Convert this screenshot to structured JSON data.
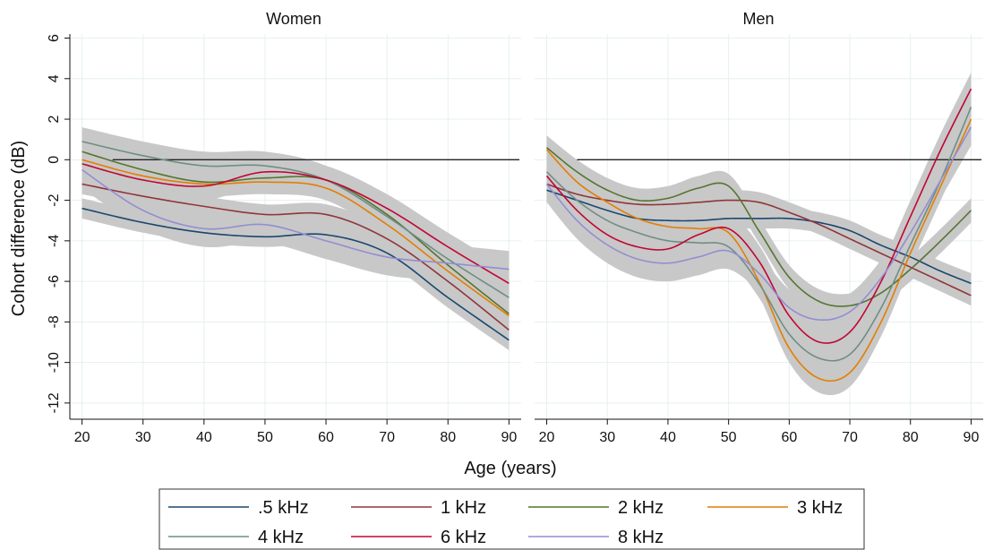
{
  "chart_data": {
    "type": "line",
    "xlabel": "Age (years)",
    "ylabel": "Cohort difference (dB)",
    "xlim": [
      18,
      92
    ],
    "ylim": [
      -12.8,
      6.2
    ],
    "xticks": [
      "20",
      "30",
      "40",
      "50",
      "60",
      "70",
      "80",
      "90"
    ],
    "yticks": [
      "6",
      "4",
      "2",
      "0",
      "-2",
      "-4",
      "-6",
      "-8",
      "-10",
      "-12"
    ],
    "reference_line_y": 0,
    "grid": true,
    "confidence_bands": "grey",
    "legend_position": "bottom",
    "panels": [
      {
        "title": "Women",
        "x": [
          20,
          30,
          40,
          50,
          60,
          70,
          80,
          90
        ],
        "series": [
          {
            "name": ".5 kHz",
            "color": "#1a476f",
            "values": [
              -2.4,
              -3.1,
              -3.6,
              -3.8,
              -3.7,
              -4.6,
              -6.8,
              -8.9
            ],
            "band": 0.5
          },
          {
            "name": "1 kHz",
            "color": "#90353b",
            "values": [
              -1.2,
              -1.8,
              -2.3,
              -2.7,
              -2.7,
              -3.9,
              -6.0,
              -8.4
            ],
            "band": 0.5
          },
          {
            "name": "2 kHz",
            "color": "#55752f",
            "values": [
              0.4,
              -0.5,
              -1.1,
              -0.9,
              -1.0,
              -2.7,
              -5.2,
              -7.6
            ],
            "band": 0.6
          },
          {
            "name": "3 kHz",
            "color": "#e37e00",
            "values": [
              0.0,
              -0.8,
              -1.2,
              -1.1,
              -1.4,
              -3.2,
              -5.5,
              -7.7
            ],
            "band": 0.6
          },
          {
            "name": "4 kHz",
            "color": "#6e8e84",
            "values": [
              0.9,
              0.2,
              -0.3,
              -0.3,
              -1.0,
              -2.8,
              -4.9,
              -6.8
            ],
            "band": 0.7
          },
          {
            "name": "6 kHz",
            "color": "#c10534",
            "values": [
              -0.2,
              -1.0,
              -1.3,
              -0.6,
              -1.0,
              -2.4,
              -4.3,
              -6.1
            ],
            "band": 0.7
          },
          {
            "name": "8 kHz",
            "color": "#938dd2",
            "values": [
              -0.5,
              -2.5,
              -3.4,
              -3.2,
              -4.0,
              -4.8,
              -5.1,
              -5.4
            ],
            "band": 0.9
          }
        ]
      },
      {
        "title": "Men",
        "x": [
          20,
          25,
          30,
          35,
          40,
          45,
          50,
          55,
          60,
          65,
          70,
          75,
          80,
          85,
          90
        ],
        "series": [
          {
            "name": ".5 kHz",
            "color": "#1a476f",
            "values": [
              -1.5,
              -2.0,
              -2.5,
              -2.9,
              -3.0,
              -3.0,
              -2.9,
              -2.9,
              -2.9,
              -3.1,
              -3.5,
              -4.2,
              -4.8,
              -5.5,
              -6.1
            ],
            "band": 0.5
          },
          {
            "name": "1 kHz",
            "color": "#90353b",
            "values": [
              -1.2,
              -1.7,
              -2.0,
              -2.2,
              -2.2,
              -2.1,
              -2.0,
              -2.1,
              -2.6,
              -3.2,
              -3.9,
              -4.6,
              -5.3,
              -6.0,
              -6.7
            ],
            "band": 0.5
          },
          {
            "name": "2 kHz",
            "color": "#55752f",
            "values": [
              0.6,
              -0.6,
              -1.5,
              -2.0,
              -1.9,
              -1.4,
              -1.3,
              -3.5,
              -5.8,
              -7.0,
              -7.2,
              -6.6,
              -5.4,
              -4.0,
              -2.5
            ],
            "band": 0.6
          },
          {
            "name": "3 kHz",
            "color": "#e37e00",
            "values": [
              0.5,
              -1.1,
              -2.1,
              -2.9,
              -3.3,
              -3.4,
              -3.6,
              -6.0,
              -9.3,
              -10.8,
              -10.5,
              -8.1,
              -4.6,
              -1.3,
              2.0
            ],
            "band": 0.7
          },
          {
            "name": "4 kHz",
            "color": "#6e8e84",
            "values": [
              -0.6,
              -2.0,
              -3.0,
              -3.6,
              -4.0,
              -4.1,
              -4.3,
              -6.1,
              -8.6,
              -9.8,
              -9.6,
              -7.4,
              -4.2,
              -1.0,
              2.6
            ],
            "band": 0.7
          },
          {
            "name": "6 kHz",
            "color": "#c10534",
            "values": [
              -0.8,
              -2.5,
              -3.7,
              -4.3,
              -4.4,
              -3.7,
              -3.4,
              -5.0,
              -7.7,
              -9.0,
              -8.5,
              -6.1,
              -2.8,
              0.5,
              3.5
            ],
            "band": 0.8
          },
          {
            "name": "8 kHz",
            "color": "#938dd2",
            "values": [
              -1.2,
              -3.0,
              -4.2,
              -4.9,
              -5.1,
              -4.8,
              -4.5,
              -5.6,
              -7.3,
              -7.9,
              -7.5,
              -5.9,
              -3.6,
              -1.0,
              1.6
            ],
            "band": 0.9
          }
        ]
      }
    ],
    "legend": [
      {
        "label": ".5 kHz",
        "color": "#1a476f"
      },
      {
        "label": "1 kHz",
        "color": "#90353b"
      },
      {
        "label": "2 kHz",
        "color": "#55752f"
      },
      {
        "label": "3 kHz",
        "color": "#e37e00"
      },
      {
        "label": "4 kHz",
        "color": "#6e8e84"
      },
      {
        "label": "6 kHz",
        "color": "#c10534"
      },
      {
        "label": "8 kHz",
        "color": "#938dd2"
      }
    ],
    "colors": {
      "band": "#c8c8c8",
      "grid": "#e6f0ee",
      "reference": "#222222"
    }
  }
}
